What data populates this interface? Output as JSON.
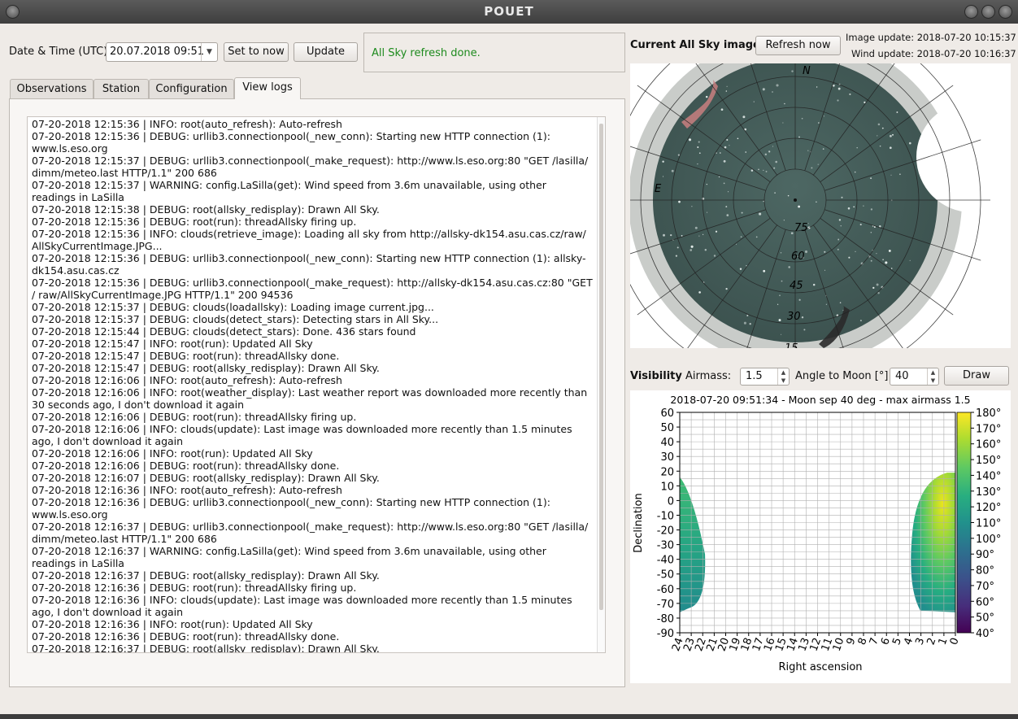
{
  "window": {
    "title": "POUET"
  },
  "toolbar": {
    "datetime_label": "Date & Time (UTC)",
    "datetime_value": "20.07.2018 09:51",
    "set_now_label": "Set to now",
    "update_label": "Update",
    "status_text": "All Sky refresh done."
  },
  "tabs": [
    {
      "label": "Observations",
      "active": false
    },
    {
      "label": "Station",
      "active": false
    },
    {
      "label": "Configuration",
      "active": false
    },
    {
      "label": "View logs",
      "active": true
    }
  ],
  "logs": [
    "07-20-2018 12:15:36 | INFO: root(auto_refresh): Auto-refresh",
    "07-20-2018 12:15:36 | DEBUG: urllib3.connectionpool(_new_conn): Starting new HTTP connection (1): www.ls.eso.org",
    "07-20-2018 12:15:37 | DEBUG: urllib3.connectionpool(_make_request): http://www.ls.eso.org:80 \"GET /lasilla/ dimm/meteo.last HTTP/1.1\" 200 686",
    "07-20-2018 12:15:37 | WARNING: config.LaSilla(get): Wind speed from 3.6m unavailable, using other readings in LaSilla",
    "07-20-2018 12:15:38 | DEBUG: root(allsky_redisplay): Drawn All Sky.",
    "07-20-2018 12:15:36 | DEBUG: root(run): threadAllsky firing up.",
    "07-20-2018 12:15:36 | INFO: clouds(retrieve_image): Loading all sky from http://allsky-dk154.asu.cas.cz/raw/ AllSkyCurrentImage.JPG...",
    "07-20-2018 12:15:36 | DEBUG: urllib3.connectionpool(_new_conn): Starting new HTTP connection (1): allsky- dk154.asu.cas.cz",
    "07-20-2018 12:15:36 | DEBUG: urllib3.connectionpool(_make_request): http://allsky-dk154.asu.cas.cz:80 \"GET / raw/AllSkyCurrentImage.JPG HTTP/1.1\" 200 94536",
    "07-20-2018 12:15:37 | DEBUG: clouds(loadallsky): Loading image current.jpg...",
    "07-20-2018 12:15:37 | DEBUG: clouds(detect_stars): Detecting stars in All Sky...",
    "07-20-2018 12:15:44 | DEBUG: clouds(detect_stars): Done. 436 stars found",
    "07-20-2018 12:15:47 | INFO: root(run): Updated All Sky",
    "07-20-2018 12:15:47 | DEBUG: root(run): threadAllsky done.",
    "07-20-2018 12:15:47 | DEBUG: root(allsky_redisplay): Drawn All Sky.",
    "07-20-2018 12:16:06 | INFO: root(auto_refresh): Auto-refresh",
    "07-20-2018 12:16:06 | INFO: root(weather_display): Last weather report was downloaded more recently than 30 seconds ago, I don't download it again",
    "07-20-2018 12:16:06 | DEBUG: root(run): threadAllsky firing up.",
    "07-20-2018 12:16:06 | INFO: clouds(update): Last image was downloaded more recently than 1.5 minutes ago, I don't download it again",
    "07-20-2018 12:16:06 | INFO: root(run): Updated All Sky",
    "07-20-2018 12:16:06 | DEBUG: root(run): threadAllsky done.",
    "07-20-2018 12:16:07 | DEBUG: root(allsky_redisplay): Drawn All Sky.",
    "07-20-2018 12:16:36 | INFO: root(auto_refresh): Auto-refresh",
    "07-20-2018 12:16:36 | DEBUG: urllib3.connectionpool(_new_conn): Starting new HTTP connection (1): www.ls.eso.org",
    "07-20-2018 12:16:37 | DEBUG: urllib3.connectionpool(_make_request): http://www.ls.eso.org:80 \"GET /lasilla/ dimm/meteo.last HTTP/1.1\" 200 686",
    "07-20-2018 12:16:37 | WARNING: config.LaSilla(get): Wind speed from 3.6m unavailable, using other readings in LaSilla",
    "07-20-2018 12:16:37 | DEBUG: root(allsky_redisplay): Drawn All Sky.",
    "07-20-2018 12:16:36 | DEBUG: root(run): threadAllsky firing up.",
    "07-20-2018 12:16:36 | INFO: clouds(update): Last image was downloaded more recently than 1.5 minutes ago, I don't download it again",
    "07-20-2018 12:16:36 | INFO: root(run): Updated All Sky",
    "07-20-2018 12:16:36 | DEBUG: root(run): threadAllsky done.",
    "07-20-2018 12:16:37 | DEBUG: root(allsky_redisplay): Drawn All Sky."
  ],
  "allsky": {
    "heading": "Current All Sky image",
    "refresh_label": "Refresh now",
    "image_update": "Image update: 2018-07-20 10:15:37",
    "wind_update": "Wind update: 2018-07-20 10:16:37",
    "compass_n": "N",
    "compass_e": "E",
    "altitude_labels": [
      "75",
      "60",
      "45",
      "30",
      "15"
    ]
  },
  "visibility": {
    "heading": "Visibility",
    "airmass_label": "Airmass:",
    "airmass_value": "1.5",
    "moon_label": "Angle to Moon [°]:",
    "moon_value": "40",
    "draw_label": "Draw"
  },
  "chart_data": {
    "type": "heatmap",
    "title": "2018-07-20 09:51:34 - Moon sep 40 deg - max airmass 1.5",
    "xlabel": "Right ascension",
    "ylabel": "Declination",
    "xlim": [
      24,
      0
    ],
    "ylim": [
      -90,
      60
    ],
    "xticks": [
      "24",
      "23",
      "22",
      "21",
      "20",
      "19",
      "18",
      "17",
      "16",
      "15",
      "14",
      "13",
      "12",
      "11",
      "10",
      "9",
      "8",
      "7",
      "6",
      "5",
      "4",
      "3",
      "2",
      "1",
      "0"
    ],
    "yticks": [
      "60",
      "50",
      "40",
      "30",
      "20",
      "10",
      "0",
      "-10",
      "-20",
      "-30",
      "-40",
      "-50",
      "-60",
      "-70",
      "-80",
      "-90"
    ],
    "grid": true,
    "colorbar": {
      "min": 40,
      "max": 180,
      "ticks": [
        "180°",
        "170°",
        "160°",
        "150°",
        "140°",
        "130°",
        "120°",
        "110°",
        "100°",
        "90°",
        "80°",
        "70°",
        "60°",
        "50°",
        "40°"
      ]
    },
    "regions": [
      {
        "ra_range": [
          24,
          21.8
        ],
        "dec_range": [
          -76,
          16
        ],
        "values": "100°-130°"
      },
      {
        "ra_range": [
          3.9,
          0
        ],
        "dec_range": [
          -76,
          19
        ],
        "values": "100°-170°"
      }
    ]
  }
}
